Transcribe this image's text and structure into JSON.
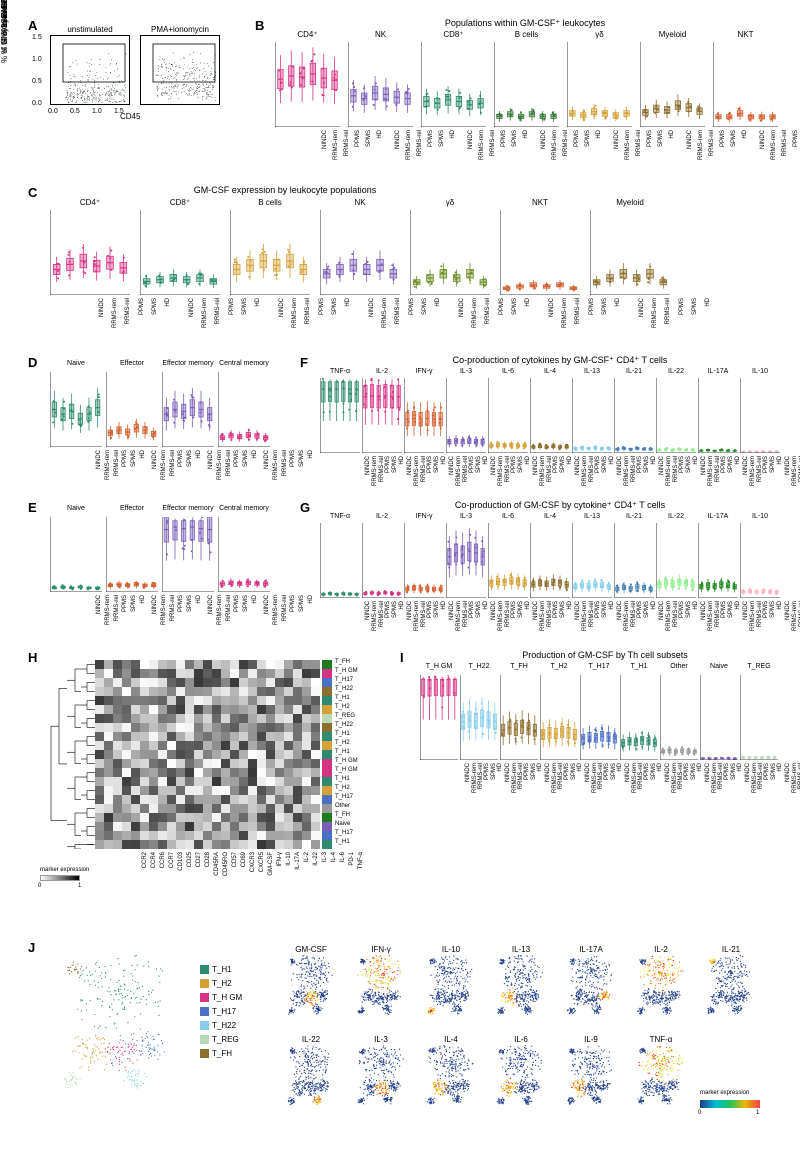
{
  "groups": [
    "NINDC",
    "RRMS-rem",
    "RRMS-rel",
    "PPMS",
    "SPMS",
    "HD"
  ],
  "panelA": {
    "label": "A",
    "plots": [
      {
        "title": "unstimulated",
        "x": "CD45",
        "y": "GM-CSF"
      },
      {
        "title": "PMA+ionomycin",
        "x": "CD45",
        "y": "GM-CSF"
      }
    ],
    "yticks": [
      "0.0",
      "0.5",
      "1.0",
      "1.5"
    ],
    "xticks": [
      "0.0",
      "0.5",
      "1.0",
      "1.5"
    ]
  },
  "panelB": {
    "label": "B",
    "title": "Populations within GM-CSF⁺ leukocytes",
    "ylab": "% in GM-CSF⁺",
    "subpanels": [
      {
        "name": "CD4⁺",
        "color": "#d63384",
        "ylim": [
          0,
          80
        ],
        "medians": [
          45,
          48,
          47,
          50,
          46,
          44
        ]
      },
      {
        "name": "NK",
        "color": "#7b5eb8",
        "ylim": [
          0,
          60
        ],
        "medians": [
          22,
          20,
          24,
          23,
          21,
          20
        ]
      },
      {
        "name": "CD8⁺",
        "color": "#2e8b6f",
        "ylim": [
          0,
          50
        ],
        "medians": [
          15,
          14,
          16,
          15,
          13,
          14
        ]
      },
      {
        "name": "B cells",
        "color": "#3a7a3a",
        "ylim": [
          0,
          40
        ],
        "medians": [
          5,
          6,
          5,
          6,
          5,
          5
        ]
      },
      {
        "name": "γδ",
        "color": "#d4a037",
        "ylim": [
          0,
          50
        ],
        "medians": [
          8,
          7,
          9,
          8,
          7,
          8
        ]
      },
      {
        "name": "Myeloid",
        "color": "#8b6f2e",
        "ylim": [
          0,
          70
        ],
        "medians": [
          12,
          15,
          14,
          18,
          16,
          13
        ]
      },
      {
        "name": "NKT",
        "color": "#d45f2e",
        "ylim": [
          0,
          25
        ],
        "medians": [
          3,
          3,
          4,
          3,
          3,
          3
        ]
      }
    ]
  },
  "panelC": {
    "label": "C",
    "title": "GM-CSF expression by leukocyte populations",
    "ylab": "% GM-CSF⁺",
    "subpanels": [
      {
        "name": "CD4⁺",
        "color": "#d63384",
        "ylim": [
          0,
          5
        ],
        "medians": [
          1.5,
          1.8,
          2,
          1.7,
          1.9,
          1.6
        ]
      },
      {
        "name": "CD8⁺",
        "color": "#2e8b6f",
        "ylim": [
          0,
          5
        ],
        "medians": [
          0.8,
          0.9,
          1,
          0.9,
          1,
          0.8
        ]
      },
      {
        "name": "B cells",
        "color": "#d4a037",
        "ylim": [
          0,
          1
        ],
        "medians": [
          0.3,
          0.35,
          0.4,
          0.35,
          0.4,
          0.3
        ]
      },
      {
        "name": "NK",
        "color": "#7b5eb8",
        "ylim": [
          0,
          20
        ],
        "medians": [
          5,
          6,
          7,
          6,
          7,
          5
        ]
      },
      {
        "name": "γδ",
        "color": "#6b8e23",
        "ylim": [
          0,
          20
        ],
        "medians": [
          3,
          4,
          5,
          4,
          5,
          3
        ]
      },
      {
        "name": "NKT",
        "color": "#d45f2e",
        "ylim": [
          0,
          25
        ],
        "medians": [
          2,
          2.5,
          3,
          2.5,
          3,
          2
        ]
      },
      {
        "name": "Myeloid",
        "color": "#8b6f2e",
        "ylim": [
          0,
          10
        ],
        "medians": [
          1.5,
          2,
          2.5,
          2,
          2.5,
          1.5
        ]
      }
    ]
  },
  "panelD": {
    "label": "D",
    "ylab": "% in CD4⁺ T cells",
    "subpanels": [
      {
        "name": "Naive",
        "color": "#2e8b6f",
        "ylim": [
          0,
          80
        ],
        "medians": [
          40,
          35,
          38,
          30,
          35,
          42
        ]
      },
      {
        "name": "Effector",
        "color": "#d45f2e",
        "ylim": [
          0,
          80
        ],
        "medians": [
          15,
          18,
          16,
          20,
          18,
          14
        ]
      },
      {
        "name": "Effector memory",
        "color": "#7b5eb8",
        "ylim": [
          0,
          80
        ],
        "medians": [
          35,
          40,
          38,
          42,
          40,
          35
        ]
      },
      {
        "name": "Central memory",
        "color": "#d63384",
        "ylim": [
          0,
          80
        ],
        "medians": [
          10,
          12,
          11,
          13,
          12,
          10
        ]
      }
    ]
  },
  "panelE": {
    "label": "E",
    "ylab": "% in GM-CSF⁺",
    "subpanels": [
      {
        "name": "Naive",
        "color": "#2e8b6f",
        "ylim": [
          0,
          90
        ],
        "medians": [
          5,
          6,
          5,
          6,
          5,
          5
        ]
      },
      {
        "name": "Effector",
        "color": "#d45f2e",
        "ylim": [
          0,
          90
        ],
        "medians": [
          8,
          9,
          8,
          9,
          8,
          8
        ]
      },
      {
        "name": "Effector memory",
        "color": "#7b5eb8",
        "ylim": [
          0,
          90
        ],
        "medians": [
          75,
          78,
          76,
          78,
          76,
          75
        ]
      },
      {
        "name": "Central memory",
        "color": "#d63384",
        "ylim": [
          0,
          90
        ],
        "medians": [
          10,
          11,
          10,
          11,
          10,
          10
        ]
      }
    ]
  },
  "panelF": {
    "label": "F",
    "title": "Co-production of cytokines by GM-CSF⁺ CD4⁺ T cells",
    "ylab": "% of cytokine⁺",
    "cytokines": [
      {
        "name": "TNF-α",
        "color": "#2e8b6f",
        "medians": [
          85,
          86,
          85,
          86,
          85,
          85
        ]
      },
      {
        "name": "IL-2",
        "color": "#d63384",
        "medians": [
          75,
          76,
          75,
          76,
          75,
          75
        ]
      },
      {
        "name": "IFN-γ",
        "color": "#d45f2e",
        "medians": [
          45,
          46,
          45,
          46,
          45,
          45
        ]
      },
      {
        "name": "IL-3",
        "color": "#7b5eb8",
        "medians": [
          15,
          16,
          15,
          16,
          15,
          15
        ]
      },
      {
        "name": "IL-6",
        "color": "#d4a037",
        "medians": [
          10,
          11,
          10,
          11,
          10,
          10
        ]
      },
      {
        "name": "IL-4",
        "color": "#8b6f2e",
        "medians": [
          8,
          9,
          8,
          9,
          8,
          8
        ]
      },
      {
        "name": "IL-13",
        "color": "#87ceeb",
        "medians": [
          6,
          7,
          6,
          7,
          6,
          6
        ]
      },
      {
        "name": "IL-21",
        "color": "#4682b4",
        "medians": [
          5,
          6,
          5,
          6,
          5,
          5
        ]
      },
      {
        "name": "IL-22",
        "color": "#90ee90",
        "medians": [
          4,
          5,
          4,
          5,
          4,
          4
        ]
      },
      {
        "name": "IL-17A",
        "color": "#228b22",
        "medians": [
          3,
          4,
          3,
          4,
          3,
          3
        ]
      },
      {
        "name": "IL-10",
        "color": "#ffb6c1",
        "medians": [
          2,
          2,
          2,
          2,
          2,
          2
        ]
      }
    ],
    "ylim": [
      0,
      100
    ]
  },
  "panelG": {
    "label": "G",
    "title": "Co-production of GM-CSF by cytokine⁺ CD4⁺ T cells",
    "ylab": "% of cytokine⁺",
    "cytokines": [
      {
        "name": "TNF-α",
        "color": "#2e8b6f",
        "medians": [
          5,
          6,
          5,
          6,
          5,
          5
        ]
      },
      {
        "name": "IL-2",
        "color": "#d63384",
        "medians": [
          6,
          7,
          6,
          7,
          6,
          6
        ]
      },
      {
        "name": "IFN-γ",
        "color": "#d45f2e",
        "medians": [
          12,
          13,
          12,
          13,
          12,
          12
        ]
      },
      {
        "name": "IL-3",
        "color": "#7b5eb8",
        "medians": [
          55,
          60,
          58,
          62,
          60,
          55
        ]
      },
      {
        "name": "IL-6",
        "color": "#d4a037",
        "medians": [
          20,
          22,
          21,
          23,
          22,
          20
        ]
      },
      {
        "name": "IL-4",
        "color": "#8b6f2e",
        "medians": [
          18,
          20,
          19,
          21,
          20,
          18
        ]
      },
      {
        "name": "IL-13",
        "color": "#87ceeb",
        "medians": [
          15,
          17,
          16,
          18,
          17,
          15
        ]
      },
      {
        "name": "IL-21",
        "color": "#4682b4",
        "medians": [
          12,
          14,
          13,
          15,
          14,
          12
        ]
      },
      {
        "name": "IL-22",
        "color": "#90ee90",
        "medians": [
          18,
          20,
          19,
          21,
          20,
          18
        ]
      },
      {
        "name": "IL-17A",
        "color": "#228b22",
        "medians": [
          15,
          17,
          16,
          18,
          17,
          15
        ]
      },
      {
        "name": "IL-10",
        "color": "#ffb6c1",
        "medians": [
          8,
          9,
          8,
          9,
          8,
          8
        ]
      }
    ],
    "ylim": [
      0,
      100
    ]
  },
  "panelH": {
    "label": "H",
    "markers": [
      "CCR2",
      "CCR4",
      "CCR6",
      "CCR7",
      "CD103",
      "CD25",
      "CD27",
      "CD28",
      "CD45RA",
      "CD45RO",
      "CD57",
      "CD69",
      "CXCR3",
      "CXCR5",
      "GM-CSF",
      "IFN-γ",
      "IL-10",
      "IL-17A",
      "IL-2",
      "IL-22",
      "IL-3",
      "IL-4",
      "IL-6",
      "PD-1",
      "TNF-α"
    ],
    "rows": [
      {
        "name": "T_FH",
        "color": "#1e7a1e"
      },
      {
        "name": "T_H GM",
        "color": "#d63384"
      },
      {
        "name": "T_H17",
        "color": "#4a6fc4"
      },
      {
        "name": "T_H22",
        "color": "#8b6f2e"
      },
      {
        "name": "T_H1",
        "color": "#2e8b6f"
      },
      {
        "name": "T_H2",
        "color": "#d4a037"
      },
      {
        "name": "T_REG",
        "color": "#b8d8b8"
      },
      {
        "name": "T_H22",
        "color": "#8b6f2e"
      },
      {
        "name": "T_H1",
        "color": "#2e8b6f"
      },
      {
        "name": "T_H2",
        "color": "#d4a037"
      },
      {
        "name": "T_H1",
        "color": "#2e8b6f"
      },
      {
        "name": "T_H GM",
        "color": "#d63384"
      },
      {
        "name": "T_H GM",
        "color": "#d63384"
      },
      {
        "name": "T_H1",
        "color": "#2e8b6f"
      },
      {
        "name": "T_H2",
        "color": "#d4a037"
      },
      {
        "name": "T_H17",
        "color": "#4a6fc4"
      },
      {
        "name": "Other",
        "color": "#999999"
      },
      {
        "name": "T_FH",
        "color": "#1e7a1e"
      },
      {
        "name": "Naive",
        "color": "#7b5eb8"
      },
      {
        "name": "T_H17",
        "color": "#4a6fc4"
      },
      {
        "name": "T_H1",
        "color": "#2e8b6f"
      }
    ],
    "legend_label": "marker expression"
  },
  "panelI": {
    "label": "I",
    "title": "Production of GM-CSF by Th cell subsets",
    "ylab": "% of GM-CSF⁺",
    "subsets": [
      {
        "name": "T_H GM",
        "color": "#d63384",
        "medians": [
          95,
          94,
          95,
          94,
          95,
          95
        ]
      },
      {
        "name": "T_H22",
        "color": "#87ceeb",
        "medians": [
          45,
          48,
          46,
          49,
          47,
          45
        ]
      },
      {
        "name": "T_FH",
        "color": "#8b6f2e",
        "medians": [
          35,
          38,
          36,
          39,
          37,
          35
        ]
      },
      {
        "name": "T_H2",
        "color": "#d4a037",
        "medians": [
          30,
          32,
          31,
          33,
          32,
          30
        ]
      },
      {
        "name": "T_H17",
        "color": "#4a6fc4",
        "medians": [
          25,
          27,
          26,
          28,
          27,
          25
        ]
      },
      {
        "name": "T_H1",
        "color": "#2e8b6f",
        "medians": [
          20,
          22,
          21,
          23,
          22,
          20
        ]
      },
      {
        "name": "Other",
        "color": "#999999",
        "medians": [
          10,
          11,
          10,
          11,
          10,
          10
        ]
      },
      {
        "name": "Naive",
        "color": "#7b5eb8",
        "medians": [
          2,
          2,
          2,
          2,
          2,
          2
        ]
      },
      {
        "name": "T_REG",
        "color": "#b8d8b8",
        "medians": [
          3,
          3,
          3,
          3,
          3,
          3
        ]
      }
    ],
    "ylim": [
      0,
      100
    ]
  },
  "panelJ": {
    "label": "J",
    "legend": [
      {
        "name": "T_H1",
        "color": "#2e8b6f"
      },
      {
        "name": "T_H2",
        "color": "#d4a037"
      },
      {
        "name": "T_H GM",
        "color": "#d63384"
      },
      {
        "name": "T_H17",
        "color": "#4a6fc4"
      },
      {
        "name": "T_H22",
        "color": "#87ceeb"
      },
      {
        "name": "T_REG",
        "color": "#b8d8b8"
      },
      {
        "name": "T_FH",
        "color": "#8b6f2e"
      }
    ],
    "markers": [
      "GM-CSF",
      "IFN-γ",
      "IL-10",
      "IL-13",
      "IL-17A",
      "IL-2",
      "IL-21",
      "IL-22",
      "IL-3",
      "IL-4",
      "IL-6",
      "IL-9",
      "TNF-α"
    ],
    "legend_label": "marker expression"
  }
}
